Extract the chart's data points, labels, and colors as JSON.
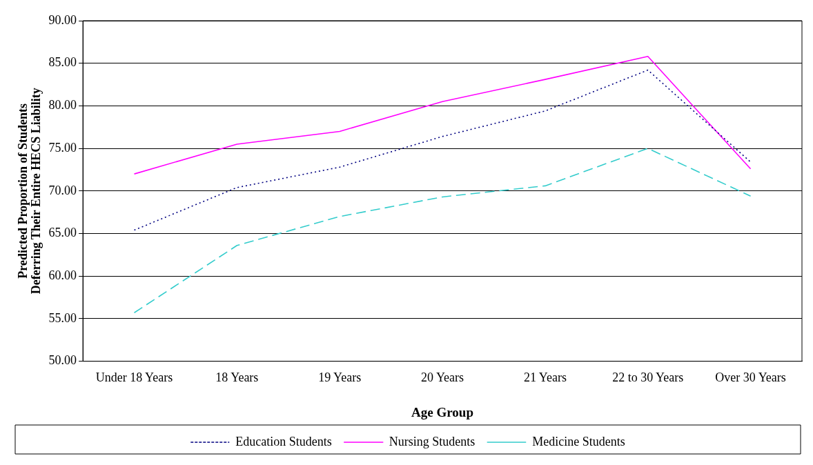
{
  "chart_data": {
    "type": "line",
    "xlabel": "Age Group",
    "ylabel": "Predicted Proportion of Students Deferring Their Entire HECS Liability",
    "categories": [
      "Under 18 Years",
      "18 Years",
      "19 Years",
      "20 Years",
      "21 Years",
      "22 to 30 Years",
      "Over 30 Years"
    ],
    "series": [
      {
        "name": "Education Students",
        "color": "#000080",
        "line_style": "dotted",
        "values": [
          65.4,
          70.4,
          72.8,
          76.4,
          79.4,
          84.2,
          73.4
        ]
      },
      {
        "name": "Nursing Students",
        "color": "#ff00ff",
        "line_style": "solid",
        "values": [
          72.0,
          75.5,
          77.0,
          80.5,
          83.1,
          85.8,
          72.6
        ]
      },
      {
        "name": "Medicine Students",
        "color": "#33cccc",
        "line_style": "dashed",
        "values": [
          55.7,
          63.6,
          67.0,
          69.3,
          70.6,
          75.0,
          69.4
        ]
      }
    ],
    "ylim": [
      50,
      90
    ],
    "yticks": [
      {
        "value": 50,
        "label": "50.00"
      },
      {
        "value": 55,
        "label": "55.00"
      },
      {
        "value": 60,
        "label": "60.00"
      },
      {
        "value": 65,
        "label": "65.00"
      },
      {
        "value": 70,
        "label": "70.00"
      },
      {
        "value": 75,
        "label": "75.00"
      },
      {
        "value": 80,
        "label": "80.00"
      },
      {
        "value": 85,
        "label": "85.00"
      },
      {
        "value": 90,
        "label": "90.00"
      }
    ],
    "grid": "y",
    "legend": "bottom",
    "marker": "none"
  }
}
